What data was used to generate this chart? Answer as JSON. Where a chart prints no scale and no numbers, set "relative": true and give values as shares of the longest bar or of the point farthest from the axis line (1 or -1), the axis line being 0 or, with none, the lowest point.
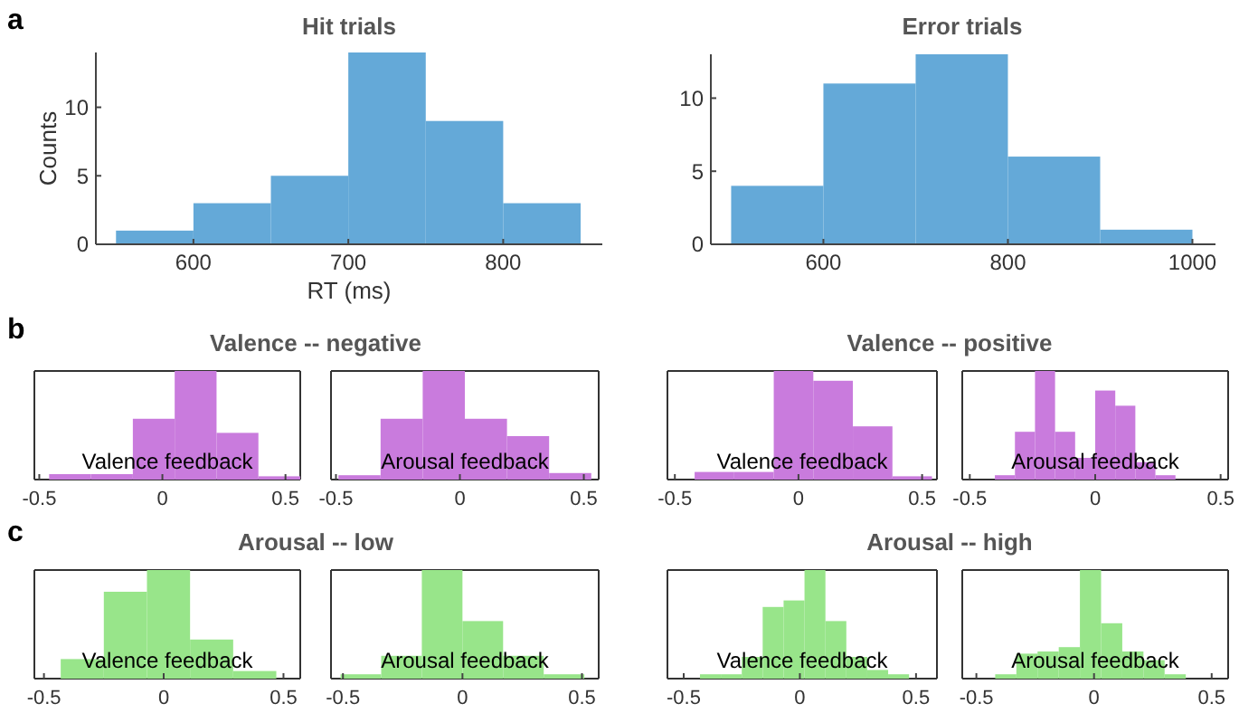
{
  "chart_data": [
    {
      "type": "histogram",
      "title": "Hit trials",
      "xlabel": "RT (ms)",
      "ylabel": "Counts",
      "annotations": [
        "a"
      ],
      "bins": [
        550,
        600,
        650,
        700,
        750,
        800,
        850
      ],
      "values": [
        1,
        3,
        5,
        14,
        9,
        3
      ],
      "color": "#64a9d8",
      "xlim": [
        537,
        864
      ],
      "ylim": [
        0,
        14
      ],
      "xticks": [
        600,
        700,
        800
      ],
      "yticks": [
        0,
        5,
        10
      ]
    },
    {
      "type": "histogram",
      "title": "Error trials",
      "bins": [
        500,
        600,
        700,
        800,
        900,
        1000
      ],
      "values": [
        4,
        11,
        13,
        6,
        1
      ],
      "color": "#64a9d8",
      "xlim": [
        478,
        1025
      ],
      "ylim": [
        0,
        13
      ],
      "xticks": [
        600,
        800,
        1000
      ],
      "yticks": [
        0,
        5,
        10
      ]
    },
    {
      "type": "bar",
      "title": "Valence -- negative",
      "annotations": [
        "b",
        "Valence feedback"
      ],
      "relative": true,
      "tick_labels": "x",
      "x": [
        -0.375,
        -0.205,
        -0.035,
        0.135,
        0.305,
        0.475
      ],
      "values": [
        0.05,
        0.05,
        0.56,
        1,
        0.43,
        0.03
      ],
      "color": "#c97bdd",
      "xlim": [
        -0.52,
        0.56
      ],
      "xticks": [
        {
          "value": -0.5,
          "label": "-0.5"
        },
        {
          "value": 0,
          "label": "0"
        },
        {
          "value": 0.5,
          "label": "0.5"
        }
      ]
    },
    {
      "type": "bar",
      "annotations": [
        "Arousal feedback"
      ],
      "relative": true,
      "tick_labels": "x",
      "x": [
        -0.405,
        -0.235,
        -0.065,
        0.105,
        0.275,
        0.445
      ],
      "values": [
        0.04,
        0.56,
        1,
        0.56,
        0.4,
        0.06
      ],
      "color": "#c97bdd",
      "xlim": [
        -0.52,
        0.56
      ],
      "xticks": [
        {
          "value": -0.5,
          "label": "-0.5"
        },
        {
          "value": 0,
          "label": "0"
        },
        {
          "value": 0.5,
          "label": "0.5"
        }
      ]
    },
    {
      "type": "bar",
      "title": "Valence -- positive",
      "annotations": [
        "Valence feedback"
      ],
      "relative": true,
      "tick_labels": "x",
      "x": [
        -0.34,
        -0.18,
        -0.02,
        0.14,
        0.3,
        0.46
      ],
      "values": [
        0.07,
        0.07,
        1,
        0.91,
        0.49,
        0.03
      ],
      "color": "#c97bdd",
      "xlim": [
        -0.53,
        0.56
      ],
      "xticks": [
        {
          "value": -0.5,
          "label": "-0.5"
        },
        {
          "value": 0,
          "label": "0"
        },
        {
          "value": 0.5,
          "label": "0.5"
        }
      ]
    },
    {
      "type": "bar",
      "annotations": [
        "Arousal feedback"
      ],
      "relative": true,
      "tick_labels": "x",
      "x": [
        -0.36,
        -0.28,
        -0.2,
        -0.12,
        -0.04,
        0.04,
        0.12,
        0.2,
        0.28
      ],
      "values": [
        0.04,
        0.44,
        1,
        0.44,
        0.2,
        0.82,
        0.68,
        0.16,
        0.04
      ],
      "color": "#c97bdd",
      "xlim": [
        -0.53,
        0.53
      ],
      "xticks": [
        {
          "value": -0.5,
          "label": "-0.5"
        },
        {
          "value": 0,
          "label": "0"
        },
        {
          "value": 0.5,
          "label": "0.5"
        }
      ]
    },
    {
      "type": "bar",
      "title": "Arousal -- low",
      "annotations": [
        "c",
        "Valence feedback"
      ],
      "relative": true,
      "tick_labels": "x",
      "x": [
        -0.34,
        -0.16,
        0.02,
        0.2,
        0.38
      ],
      "values": [
        0.18,
        0.8,
        1,
        0.36,
        0.07
      ],
      "color": "#98e58a",
      "xlim": [
        -0.54,
        0.57
      ],
      "xticks": [
        {
          "value": -0.5,
          "label": "-0.5"
        },
        {
          "value": 0,
          "label": "0"
        },
        {
          "value": 0.5,
          "label": "0.5"
        }
      ]
    },
    {
      "type": "bar",
      "annotations": [
        "Arousal feedback"
      ],
      "relative": true,
      "tick_labels": "x",
      "x": [
        -0.425,
        -0.255,
        -0.085,
        0.085,
        0.255,
        0.425
      ],
      "values": [
        0.04,
        0.21,
        1,
        0.53,
        0.21,
        0.04
      ],
      "color": "#98e58a",
      "xlim": [
        -0.55,
        0.57
      ],
      "xticks": [
        {
          "value": -0.5,
          "label": "-0.5"
        },
        {
          "value": 0,
          "label": "0"
        },
        {
          "value": 0.5,
          "label": "0.5"
        }
      ]
    },
    {
      "type": "bar",
      "title": "Arousal -- high",
      "annotations": [
        "Valence feedback"
      ],
      "relative": true,
      "tick_labels": "x",
      "x": [
        -0.385,
        -0.295,
        -0.205,
        -0.115,
        -0.025,
        0.065,
        0.155,
        0.245,
        0.335,
        0.425
      ],
      "values": [
        0.04,
        0.04,
        0.2,
        0.66,
        0.72,
        1,
        0.53,
        0.2,
        0.08,
        0.04
      ],
      "color": "#98e58a",
      "xlim": [
        -0.57,
        0.59
      ],
      "xticks": [
        {
          "value": -0.5,
          "label": "-0.5"
        },
        {
          "value": 0,
          "label": "0"
        },
        {
          "value": 0.5,
          "label": "0.5"
        }
      ]
    },
    {
      "type": "bar",
      "annotations": [
        "Arousal feedback"
      ],
      "relative": true,
      "tick_labels": "x",
      "x": [
        -0.375,
        -0.285,
        -0.195,
        -0.105,
        -0.015,
        0.075,
        0.165,
        0.255,
        0.345
      ],
      "values": [
        0.04,
        0.23,
        0.25,
        0.29,
        1,
        0.51,
        0.25,
        0.17,
        0.04
      ],
      "color": "#98e58a",
      "xlim": [
        -0.56,
        0.57
      ],
      "xticks": [
        {
          "value": -0.5,
          "label": "-0.5"
        },
        {
          "value": 0,
          "label": "0"
        },
        {
          "value": 0.5,
          "label": "0.5"
        }
      ]
    }
  ]
}
